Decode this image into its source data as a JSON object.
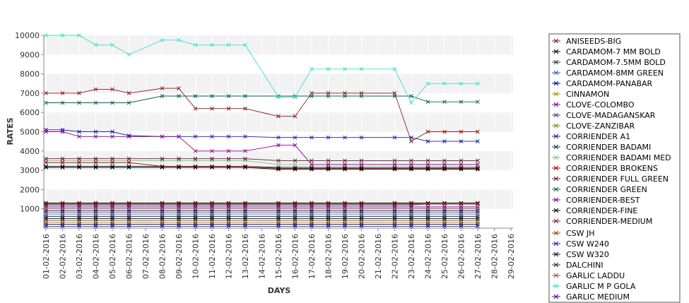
{
  "chart_data": {
    "type": "line",
    "xlabel": "DAYS",
    "ylabel": "RATES",
    "ylim": [
      0,
      10000
    ],
    "yticks": [
      1000,
      2000,
      3000,
      4000,
      5000,
      6000,
      7000,
      8000,
      9000,
      10000
    ],
    "grid": "alternating horizontal bands",
    "legend_position": "right",
    "x": [
      "01-02-2016",
      "02-02-2016",
      "03-02-2016",
      "04-02-2016",
      "05-02-2016",
      "06-02-2016",
      "07-02-2016",
      "08-02-2016",
      "09-02-2016",
      "10-02-2016",
      "11-02-2016",
      "12-02-2016",
      "13-02-2016",
      "14-02-2016",
      "15-02-2016",
      "16-02-2016",
      "17-02-2016",
      "18-02-2016",
      "19-02-2016",
      "20-02-2016",
      "21-02-2016",
      "22-02-2016",
      "23-02-2016",
      "24-02-2016",
      "25-02-2016",
      "26-02-2016",
      "27-02-2016",
      "28-02-2016",
      "29-02-2016"
    ],
    "series": [
      {
        "name": "ANISEEDS-BIG",
        "color": "#8b1a1a",
        "values": [
          7000,
          7000,
          7000,
          7200,
          7200,
          7000,
          null,
          7250,
          7250,
          6200,
          6200,
          6200,
          6200,
          null,
          5800,
          5800,
          7000,
          7000,
          7000,
          7000,
          null,
          7000,
          4500,
          5000,
          5000,
          5000,
          5000,
          null,
          null
        ]
      },
      {
        "name": "CARDAMOM-7 MM BOLD",
        "color": "#000000",
        "values": [
          1300,
          1300,
          1300,
          1300,
          1300,
          1300,
          null,
          1300,
          1300,
          1300,
          1300,
          1300,
          1300,
          null,
          1300,
          1300,
          1300,
          1300,
          1300,
          1300,
          null,
          1300,
          1300,
          1300,
          1300,
          1300,
          1300,
          null,
          null
        ]
      },
      {
        "name": "CARDAMOM-7.5MM BOLD",
        "color": "#1f3d3d",
        "values": [
          1200,
          1200,
          1200,
          1200,
          1200,
          1200,
          null,
          1200,
          1200,
          1200,
          1200,
          1200,
          1200,
          null,
          1200,
          1200,
          1200,
          1200,
          1200,
          1200,
          null,
          1200,
          1200,
          1250,
          1250,
          1250,
          1250,
          null,
          null
        ]
      },
      {
        "name": "CARDAMOM-8MM GREEN",
        "color": "#2f5f8f",
        "values": [
          1000,
          1000,
          1000,
          1000,
          1000,
          1000,
          null,
          1000,
          1000,
          1000,
          1000,
          1000,
          1000,
          null,
          1000,
          1000,
          1000,
          1000,
          1000,
          1000,
          null,
          1000,
          1000,
          1000,
          1000,
          1000,
          1000,
          null,
          null
        ]
      },
      {
        "name": "CARDAMOM-PANABAR",
        "color": "#00008b",
        "values": [
          900,
          900,
          900,
          900,
          900,
          900,
          null,
          900,
          900,
          900,
          900,
          900,
          900,
          null,
          900,
          900,
          900,
          900,
          900,
          900,
          null,
          900,
          900,
          900,
          900,
          900,
          900,
          null,
          null
        ]
      },
      {
        "name": "CINNAMON",
        "color": "#b8860b",
        "values": [
          300,
          300,
          300,
          300,
          300,
          300,
          null,
          300,
          300,
          300,
          300,
          300,
          300,
          null,
          300,
          300,
          300,
          300,
          300,
          300,
          null,
          300,
          300,
          300,
          300,
          300,
          300,
          null,
          null
        ]
      },
      {
        "name": "CLOVE-COLOMBO",
        "color": "#8b008b",
        "values": [
          1100,
          1100,
          1100,
          1100,
          1100,
          1100,
          null,
          1100,
          1100,
          1100,
          1100,
          1100,
          1100,
          null,
          1100,
          1100,
          1100,
          1100,
          1100,
          1100,
          null,
          1100,
          1100,
          1100,
          1100,
          1100,
          1100,
          null,
          null
        ]
      },
      {
        "name": "CLOVE-MADAGANSKAR",
        "color": "#483d8b",
        "values": [
          800,
          800,
          800,
          800,
          800,
          800,
          null,
          800,
          800,
          800,
          800,
          800,
          800,
          null,
          800,
          800,
          800,
          800,
          800,
          800,
          null,
          800,
          800,
          800,
          800,
          800,
          800,
          null,
          null
        ]
      },
      {
        "name": "CLOVE-ZANZIBAR",
        "color": "#6b8e23",
        "values": [
          700,
          700,
          700,
          700,
          700,
          700,
          null,
          700,
          700,
          700,
          700,
          700,
          700,
          null,
          700,
          700,
          700,
          700,
          700,
          700,
          null,
          700,
          700,
          700,
          700,
          700,
          700,
          null,
          null
        ]
      },
      {
        "name": "CORRIENDER A1",
        "color": "#1a1aa0",
        "values": [
          5100,
          5100,
          5000,
          5000,
          5000,
          4800,
          null,
          4750,
          4750,
          4750,
          4750,
          4750,
          4750,
          null,
          4700,
          4700,
          4700,
          4700,
          4700,
          4700,
          null,
          4700,
          4700,
          4500,
          4500,
          4500,
          4500,
          null,
          null
        ]
      },
      {
        "name": "CORRIENDER BADAMI",
        "color": "#0a3a3a",
        "values": [
          3200,
          3200,
          3200,
          3200,
          3200,
          3200,
          null,
          3200,
          3200,
          3200,
          3200,
          3200,
          3200,
          null,
          3150,
          3150,
          3150,
          3150,
          3150,
          3150,
          null,
          3150,
          3150,
          3150,
          3150,
          3150,
          3150,
          null,
          null
        ]
      },
      {
        "name": "CORRIENDER BADAMI MED",
        "color": "#8fbc8f",
        "values": [
          3500,
          3500,
          3500,
          3500,
          3500,
          3500,
          null,
          3500,
          3500,
          3500,
          3500,
          3500,
          3500,
          null,
          3300,
          3300,
          3300,
          3300,
          3300,
          3300,
          null,
          3300,
          3300,
          3300,
          3300,
          3300,
          3300,
          null,
          null
        ]
      },
      {
        "name": "CORRIENDER BROKENS",
        "color": "#a00000",
        "values": [
          3400,
          3400,
          3400,
          3400,
          3400,
          3400,
          null,
          3200,
          3200,
          3200,
          3200,
          3200,
          3200,
          null,
          3100,
          3100,
          3100,
          3100,
          3100,
          3100,
          null,
          3100,
          3100,
          3100,
          3100,
          3100,
          3100,
          null,
          null
        ]
      },
      {
        "name": "CORRIENDER FULL GREEN",
        "color": "#5a1a3a",
        "values": [
          3600,
          3600,
          3600,
          3600,
          3600,
          3600,
          null,
          3600,
          3600,
          3600,
          3600,
          3600,
          3600,
          null,
          3500,
          3500,
          3500,
          3500,
          3500,
          3500,
          null,
          3500,
          3500,
          3500,
          3500,
          3500,
          3500,
          null,
          null
        ]
      },
      {
        "name": "CORRIENDER GREEN",
        "color": "#006060",
        "values": [
          6500,
          6500,
          6500,
          6500,
          6500,
          6500,
          null,
          6850,
          6850,
          6850,
          6850,
          6850,
          6850,
          null,
          6850,
          6850,
          6850,
          6850,
          6850,
          6850,
          null,
          6850,
          6850,
          6550,
          6550,
          6550,
          6550,
          null,
          null
        ]
      },
      {
        "name": "CORRIENDER-BEST",
        "color": "#8b008b",
        "values": [
          5000,
          5000,
          4750,
          4750,
          4750,
          4750,
          null,
          4750,
          4750,
          4000,
          4000,
          4000,
          4000,
          null,
          4300,
          4300,
          3300,
          3300,
          3300,
          3300,
          null,
          3300,
          3300,
          3300,
          3300,
          3300,
          3300,
          null,
          null
        ]
      },
      {
        "name": "CORRIENDER-FINE",
        "color": "#000000",
        "values": [
          3150,
          3150,
          3150,
          3150,
          3150,
          3150,
          null,
          3150,
          3150,
          3150,
          3150,
          3150,
          3150,
          null,
          3050,
          3050,
          3050,
          3050,
          3050,
          3050,
          null,
          3050,
          3050,
          3050,
          3050,
          3050,
          3050,
          null,
          null
        ]
      },
      {
        "name": "CORRIENDER-MEDIUM",
        "color": "#8b1a1a",
        "values": [
          1250,
          1250,
          1250,
          1250,
          1250,
          1250,
          null,
          1250,
          1250,
          1250,
          1250,
          1250,
          1250,
          null,
          1250,
          1250,
          1250,
          1250,
          1250,
          1250,
          null,
          1250,
          1250,
          1250,
          1250,
          1250,
          1250,
          null,
          null
        ]
      },
      {
        "name": "CSW JH",
        "color": "#8b4513",
        "values": [
          400,
          400,
          400,
          400,
          400,
          400,
          null,
          400,
          400,
          400,
          400,
          400,
          400,
          null,
          400,
          400,
          400,
          400,
          400,
          400,
          null,
          400,
          400,
          400,
          400,
          400,
          400,
          null,
          null
        ]
      },
      {
        "name": "CSW W240",
        "color": "#2020b0",
        "values": [
          600,
          600,
          600,
          600,
          600,
          600,
          null,
          600,
          600,
          600,
          600,
          600,
          600,
          null,
          600,
          600,
          600,
          600,
          600,
          600,
          null,
          600,
          600,
          600,
          600,
          600,
          600,
          null,
          null
        ]
      },
      {
        "name": "CSW W320",
        "color": "#101030",
        "values": [
          500,
          500,
          500,
          500,
          500,
          500,
          null,
          500,
          500,
          500,
          500,
          500,
          500,
          null,
          500,
          500,
          500,
          500,
          500,
          500,
          null,
          500,
          500,
          500,
          500,
          500,
          500,
          null,
          null
        ]
      },
      {
        "name": "DALCHINI",
        "color": "#103050",
        "values": [
          200,
          200,
          200,
          200,
          200,
          200,
          null,
          200,
          200,
          200,
          200,
          200,
          200,
          null,
          200,
          200,
          200,
          200,
          200,
          200,
          null,
          200,
          200,
          200,
          200,
          200,
          200,
          null,
          null
        ]
      },
      {
        "name": "GARLIC LADDU",
        "color": "#a05050",
        "values": [
          1000,
          1000,
          1000,
          1000,
          1000,
          1000,
          null,
          1000,
          1000,
          1000,
          1000,
          1000,
          1000,
          null,
          1000,
          1000,
          1000,
          1000,
          1000,
          1000,
          null,
          1000,
          1000,
          1000,
          1000,
          1000,
          1000,
          null,
          null
        ]
      },
      {
        "name": "GARLIC M P GOLA",
        "color": "#40e0c0",
        "values": [
          10000,
          10000,
          10000,
          9500,
          9500,
          9000,
          null,
          9750,
          9750,
          9500,
          9500,
          9500,
          9500,
          null,
          6800,
          6800,
          8250,
          8250,
          8250,
          8250,
          null,
          8250,
          6500,
          7500,
          7500,
          7500,
          7500,
          null,
          null
        ]
      },
      {
        "name": "GARLIC MEDIUM",
        "color": "#3a10a0",
        "values": [
          100,
          100,
          100,
          100,
          100,
          100,
          null,
          100,
          100,
          100,
          100,
          100,
          100,
          null,
          100,
          100,
          100,
          100,
          100,
          100,
          null,
          100,
          100,
          100,
          100,
          100,
          100,
          null,
          null
        ]
      }
    ]
  }
}
